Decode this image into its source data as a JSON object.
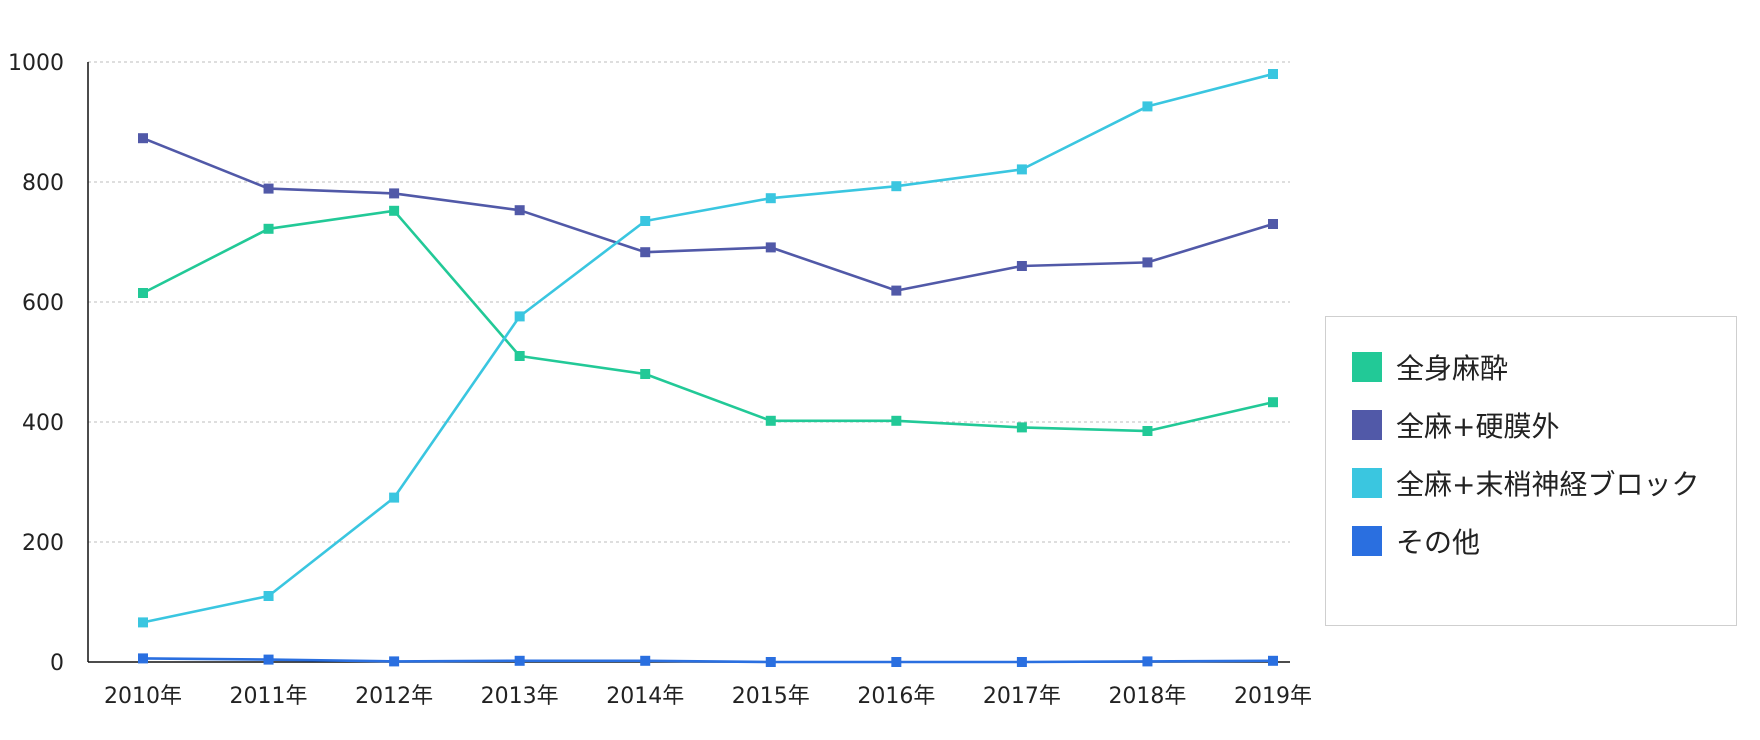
{
  "chart_data": {
    "type": "line",
    "title": "",
    "xlabel": "",
    "ylabel": "",
    "ylim": [
      0,
      1000
    ],
    "yticks": [
      0,
      200,
      400,
      600,
      800,
      1000
    ],
    "grid": true,
    "legend_position": "right",
    "categories": [
      "2010年",
      "2011年",
      "2012年",
      "2013年",
      "2014年",
      "2015年",
      "2016年",
      "2017年",
      "2018年",
      "2019年"
    ],
    "series": [
      {
        "name": "全身麻酔",
        "color": "#22c997",
        "values": [
          615,
          722,
          752,
          510,
          480,
          402,
          402,
          391,
          385,
          433
        ]
      },
      {
        "name": "全麻+硬膜外",
        "color": "#5159a8",
        "values": [
          873,
          789,
          781,
          753,
          683,
          691,
          619,
          660,
          666,
          730
        ]
      },
      {
        "name": "全麻+末梢神経ブロック",
        "color": "#3ac6e0",
        "values": [
          66,
          110,
          274,
          576,
          735,
          773,
          793,
          821,
          926,
          980
        ]
      },
      {
        "name": "その他",
        "color": "#2a6fe0",
        "values": [
          6,
          4,
          1,
          2,
          2,
          0,
          0,
          0,
          1,
          2
        ]
      }
    ]
  }
}
